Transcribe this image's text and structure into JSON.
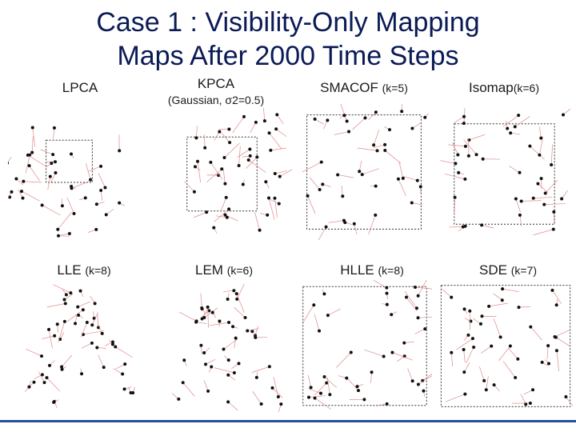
{
  "slide": {
    "title_line1": "Case 1 : Visibility-Only Mapping",
    "title_line2": "Maps After 2000 Time Steps"
  },
  "panels": [
    {
      "name": "LPCA",
      "param": "",
      "extra": ""
    },
    {
      "name": "KPCA",
      "param": "",
      "extra": "(Gaussian, σ2=0.5)"
    },
    {
      "name": "SMACOF",
      "param": "(k=5)",
      "extra": ""
    },
    {
      "name": "Isomap",
      "param": "(k=6)",
      "extra": ""
    },
    {
      "name": "LLE",
      "param": "(k=8)",
      "extra": ""
    },
    {
      "name": "LEM",
      "param": "(k=6)",
      "extra": ""
    },
    {
      "name": "HLLE",
      "param": "(k=8)",
      "extra": ""
    },
    {
      "name": "SDE",
      "param": "(k=7)",
      "extra": ""
    }
  ],
  "colors": {
    "title": "#0a1a55",
    "marker": "#111111",
    "link": "#e08a8a",
    "frame": "#333333",
    "accent_line": "#1f4fa3"
  }
}
